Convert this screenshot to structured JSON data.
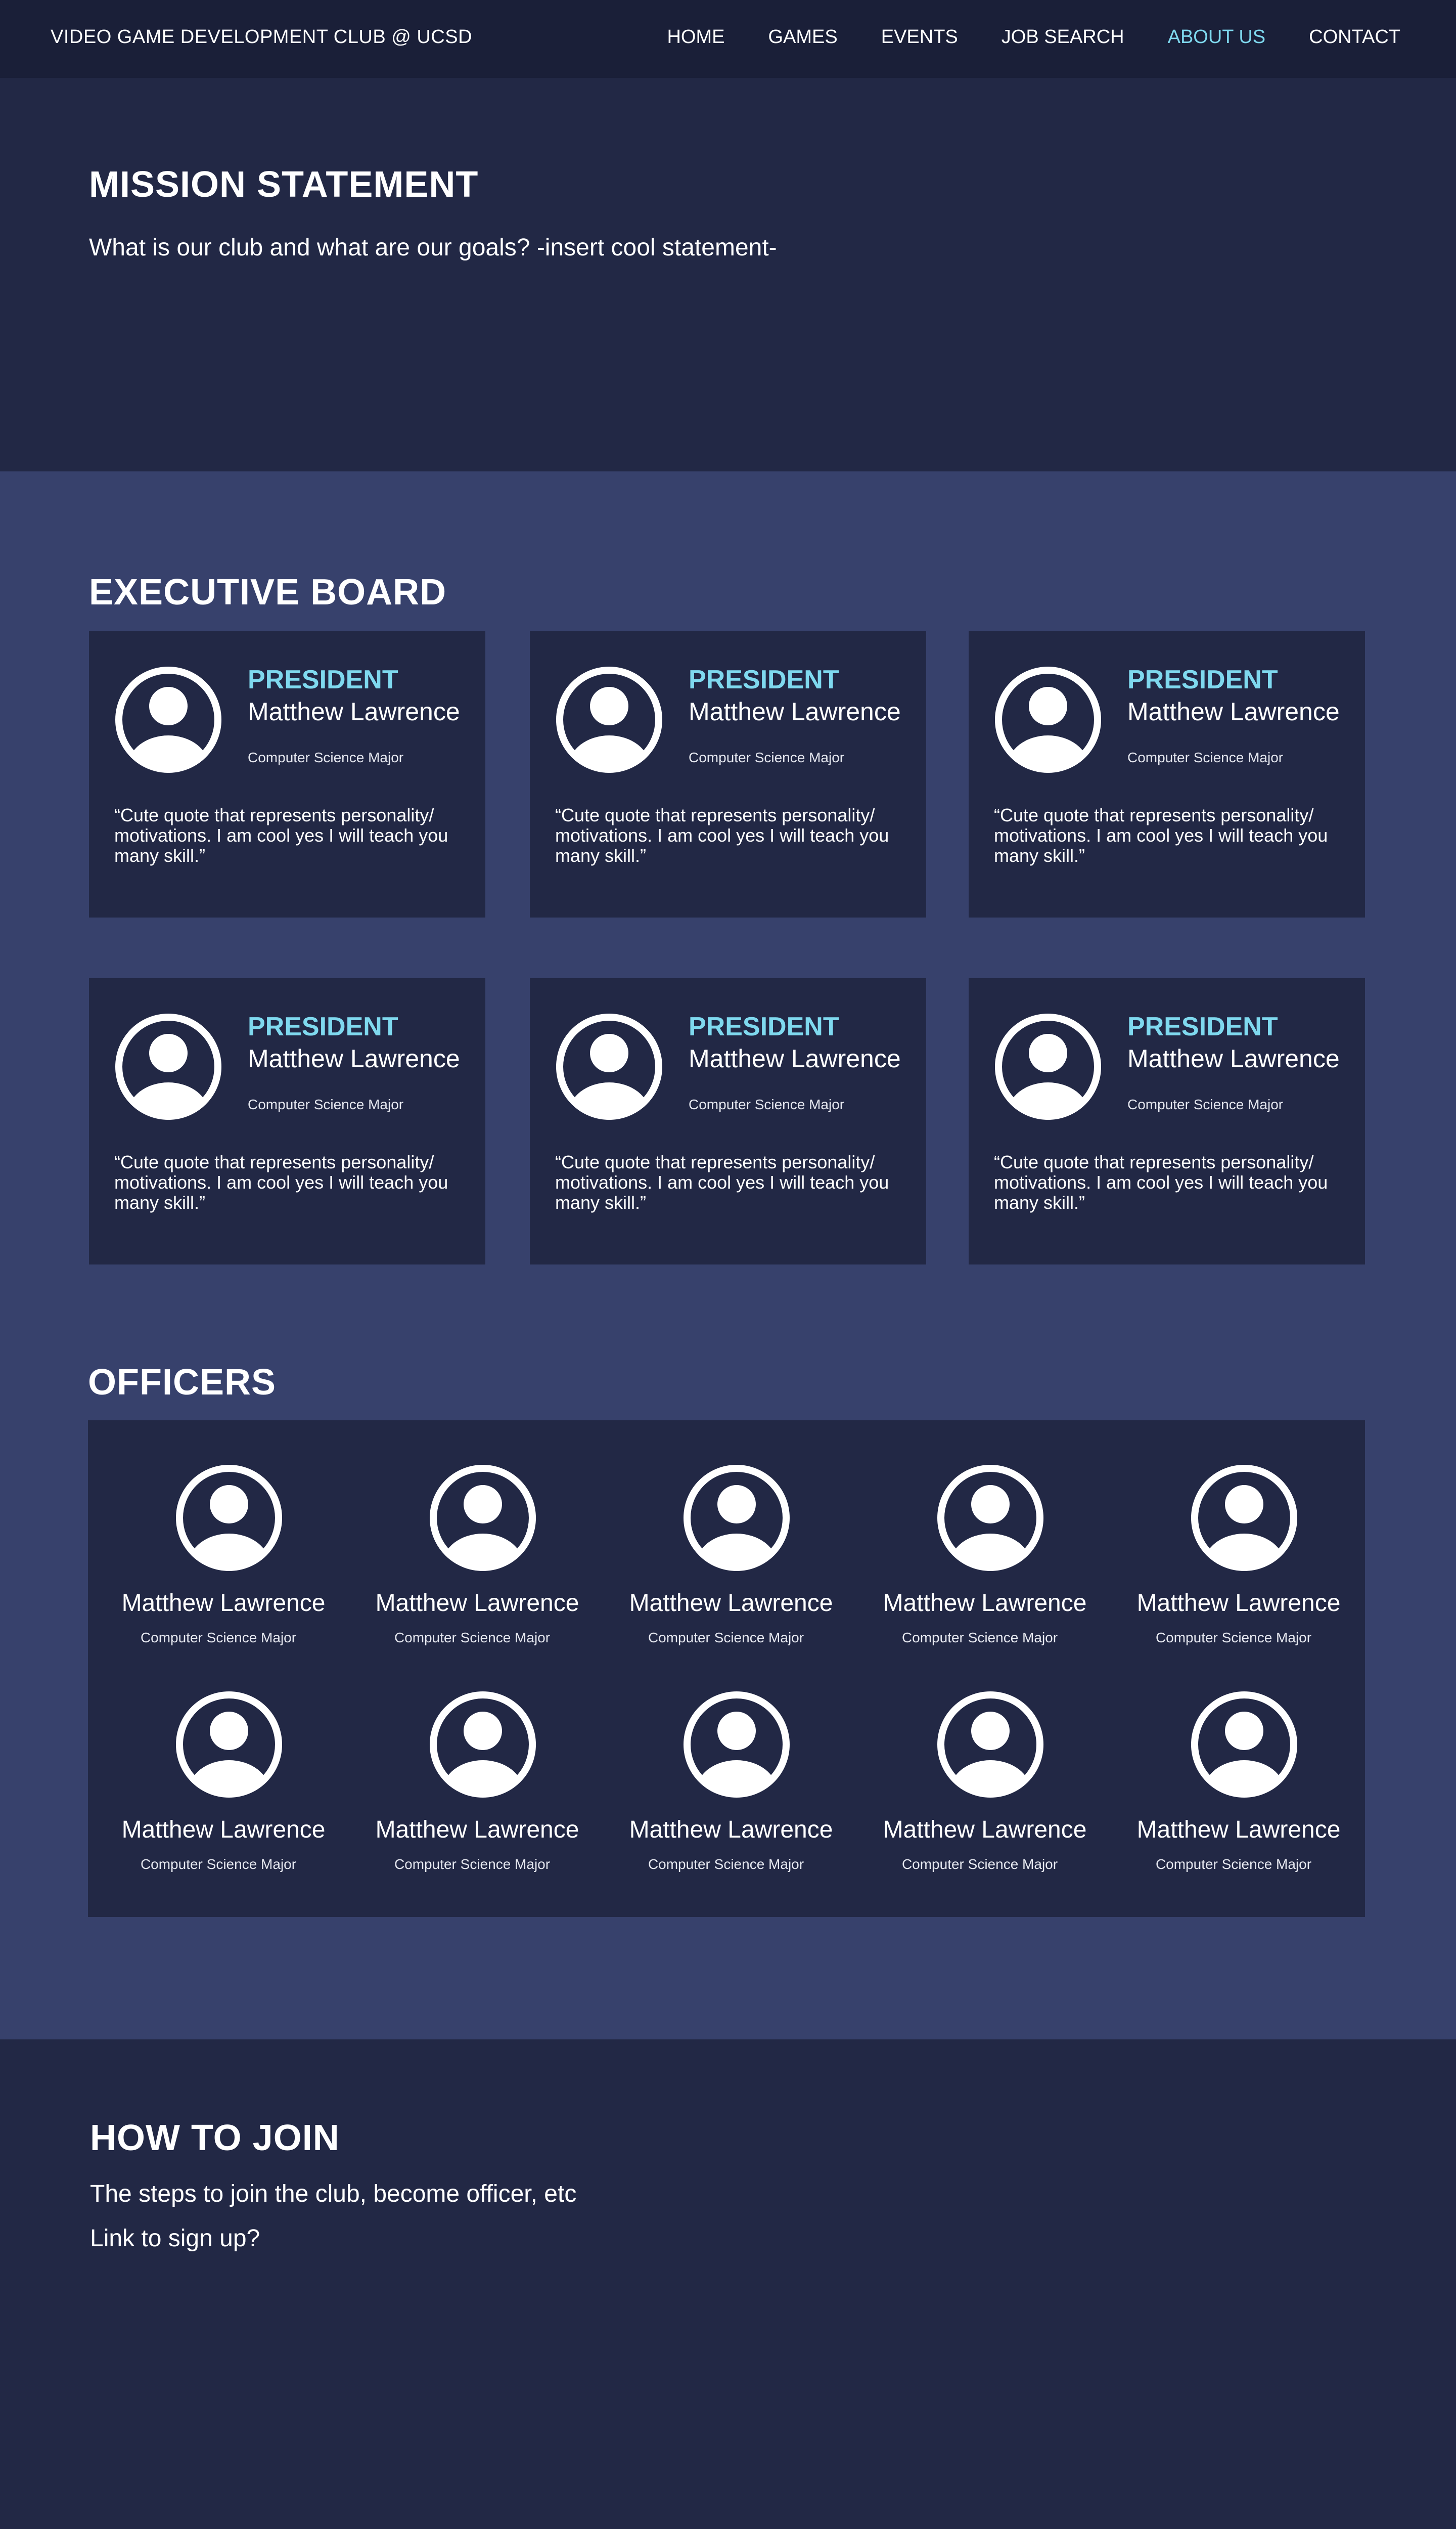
{
  "nav": {
    "brand": "VIDEO GAME DEVELOPMENT CLUB @ UCSD",
    "links": [
      "HOME",
      "GAMES",
      "EVENTS",
      "JOB SEARCH",
      "ABOUT US",
      "CONTACT"
    ],
    "active": "ABOUT US"
  },
  "mission": {
    "title": "MISSION STATEMENT",
    "text": "What is our club  and what are our goals? -insert cool statement-"
  },
  "executive": {
    "title": "EXECUTIVE BOARD",
    "cards": [
      {
        "role": "PRESIDENT",
        "name": "Matthew Lawrence",
        "major": "Computer Science Major",
        "quote": "“Cute quote that represents personality/ motivations. I am cool yes I will teach you many skill.”"
      },
      {
        "role": "PRESIDENT",
        "name": "Matthew Lawrence",
        "major": "Computer Science Major",
        "quote": "“Cute quote that represents personality/ motivations. I am cool yes I will teach you many skill.”"
      },
      {
        "role": "PRESIDENT",
        "name": "Matthew Lawrence",
        "major": "Computer Science Major",
        "quote": "“Cute quote that represents personality/ motivations. I am cool yes I will teach you many skill.”"
      },
      {
        "role": "PRESIDENT",
        "name": "Matthew Lawrence",
        "major": "Computer Science Major",
        "quote": "“Cute quote that represents personality/ motivations. I am cool yes I will teach you many skill.”"
      },
      {
        "role": "PRESIDENT",
        "name": "Matthew Lawrence",
        "major": "Computer Science Major",
        "quote": "“Cute quote that represents personality/ motivations. I am cool yes I will teach you many skill.”"
      },
      {
        "role": "PRESIDENT",
        "name": "Matthew Lawrence",
        "major": "Computer Science Major",
        "quote": "“Cute quote that represents personality/ motivations. I am cool yes I will teach you many skill.”"
      }
    ]
  },
  "officers": {
    "title": "OFFICERS",
    "items": [
      {
        "name": "Matthew Lawrence",
        "major": "Computer Science Major"
      },
      {
        "name": "Matthew Lawrence",
        "major": "Computer Science Major"
      },
      {
        "name": "Matthew Lawrence",
        "major": "Computer Science Major"
      },
      {
        "name": "Matthew Lawrence",
        "major": "Computer Science Major"
      },
      {
        "name": "Matthew Lawrence",
        "major": "Computer Science Major"
      },
      {
        "name": "Matthew Lawrence",
        "major": "Computer Science Major"
      },
      {
        "name": "Matthew Lawrence",
        "major": "Computer Science Major"
      },
      {
        "name": "Matthew Lawrence",
        "major": "Computer Science Major"
      },
      {
        "name": "Matthew Lawrence",
        "major": "Computer Science Major"
      },
      {
        "name": "Matthew Lawrence",
        "major": "Computer Science Major"
      }
    ]
  },
  "join": {
    "title": "HOW TO JOIN",
    "line1": "The steps to join the club, become officer, etc",
    "line2": "Link to sign up?"
  },
  "icons": {
    "avatar": "user-avatar-icon"
  },
  "colors": {
    "accent": "#7fd9ef",
    "nav_bg": "#1a1f38",
    "section_bg": "#222845",
    "middle_bg": "#37416c"
  }
}
